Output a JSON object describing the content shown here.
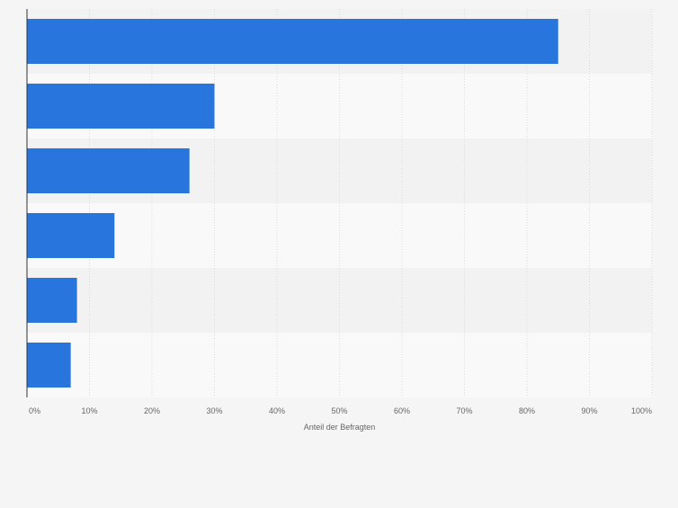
{
  "chart_data": {
    "type": "bar",
    "orientation": "horizontal",
    "categories": [
      "",
      "",
      "",
      "",
      "",
      ""
    ],
    "values": [
      85,
      30,
      26,
      14,
      8,
      7
    ],
    "xlabel": "Anteil der Befragten",
    "ylabel": "",
    "xlim": [
      0,
      100
    ],
    "x_ticks": [
      "0%",
      "10%",
      "20%",
      "30%",
      "40%",
      "50%",
      "60%",
      "70%",
      "80%",
      "90%",
      "100%"
    ],
    "grid": true,
    "legend": "none",
    "colors": {
      "bar": "#2876dd",
      "band_dark": "#f2f2f2",
      "band_light": "#f9f9f9",
      "grid": "#dcdcdc",
      "axis": "#333333",
      "tick_text": "#666666",
      "page": "#f5f5f5"
    }
  }
}
